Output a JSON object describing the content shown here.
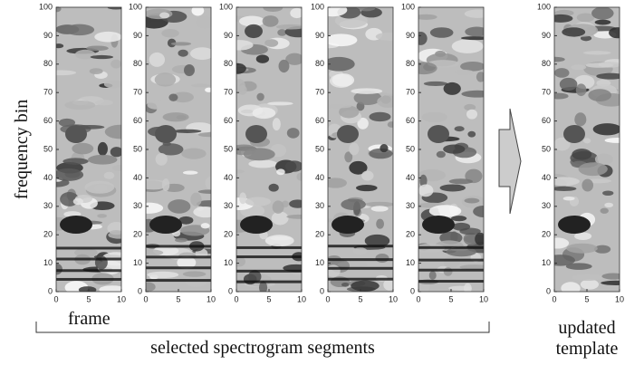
{
  "y_axis_label": "frequency bin",
  "x_axis_label": "frame",
  "group_label": "selected spectrogram segments",
  "template_label": [
    "updated",
    "template"
  ],
  "ylim": [
    0,
    100
  ],
  "yticks": [
    0,
    10,
    20,
    30,
    40,
    50,
    60,
    70,
    80,
    90,
    100
  ],
  "xlim": [
    0,
    10
  ],
  "xticks": [
    0,
    5,
    10
  ]
}
